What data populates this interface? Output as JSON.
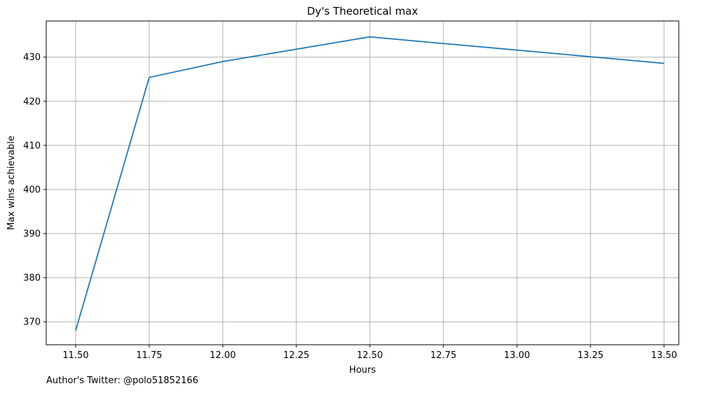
{
  "chart_data": {
    "type": "line",
    "title": "Dy's Theoretical max",
    "xlabel": "Hours",
    "ylabel": "Max wins achievable",
    "x": [
      11.5,
      11.75,
      12.0,
      12.25,
      12.5,
      12.75,
      13.0,
      13.25,
      13.5
    ],
    "series": [
      {
        "values": [
          368.0,
          425.4,
          429.0,
          431.8,
          434.6,
          433.1,
          431.6,
          430.1,
          428.6
        ],
        "color": "#1f77b4"
      }
    ],
    "xlim": [
      11.4,
      13.55
    ],
    "ylim": [
      364.8,
      438.2
    ],
    "xticks": [
      11.5,
      11.75,
      12.0,
      12.25,
      12.5,
      12.75,
      13.0,
      13.25,
      13.5
    ],
    "xtick_labels": [
      "11.50",
      "11.75",
      "12.00",
      "12.25",
      "12.50",
      "12.75",
      "13.00",
      "13.25",
      "13.50"
    ],
    "yticks": [
      370,
      380,
      390,
      400,
      410,
      420,
      430
    ],
    "ytick_labels": [
      "370",
      "380",
      "390",
      "400",
      "410",
      "420",
      "430"
    ],
    "grid": true,
    "grid_color": "#b0b0b0"
  },
  "footnote": "Author's Twitter: @polo51852166"
}
